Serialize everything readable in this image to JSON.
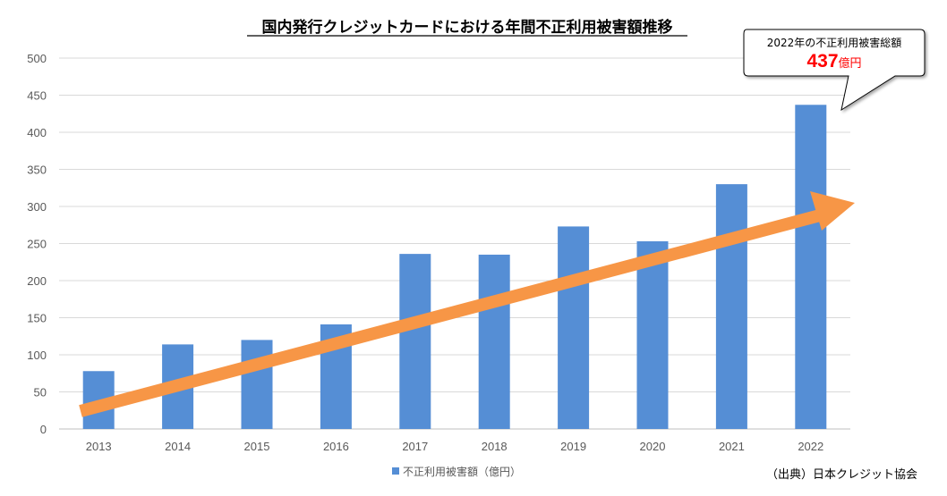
{
  "chart_data": {
    "type": "bar",
    "title": "国内発行クレジットカードにおける年間不正利用被害額推移",
    "categories": [
      "2013",
      "2014",
      "2015",
      "2016",
      "2017",
      "2018",
      "2019",
      "2020",
      "2021",
      "2022"
    ],
    "series": [
      {
        "name": "不正利用被害額（億円）",
        "values": [
          78,
          114,
          120,
          141,
          236,
          235,
          273,
          253,
          330,
          437
        ]
      }
    ],
    "ylim": [
      0,
      500
    ],
    "yticks": [
      0,
      50,
      100,
      150,
      200,
      250,
      300,
      350,
      400,
      450,
      500
    ],
    "grid": true,
    "legend_position": "bottom",
    "bar_color": "#558ed5",
    "trend_arrow_color": "#f79646",
    "annotation": {
      "label": "2022年の不正利用被害総額",
      "value": "437",
      "unit": "億円",
      "value_color": "#ff0000"
    },
    "source": "（出典）日本クレジット協会"
  }
}
